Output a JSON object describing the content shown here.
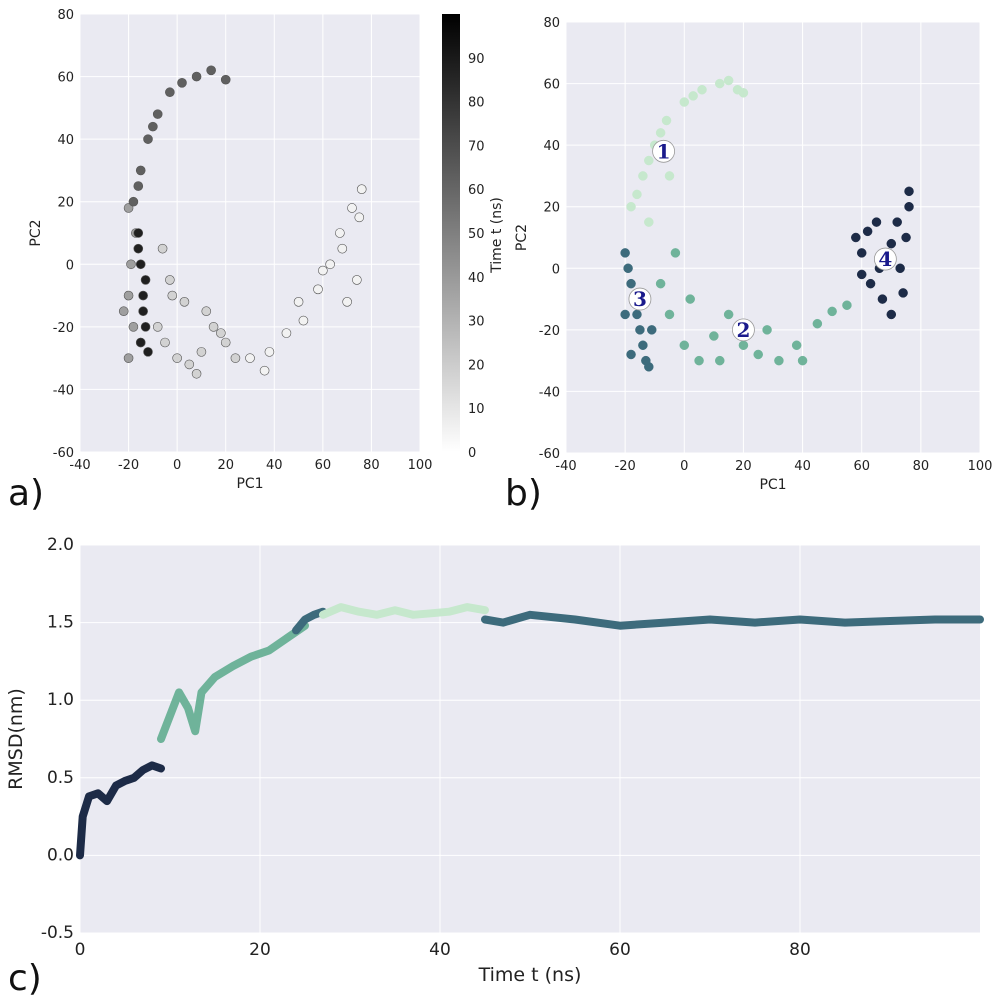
{
  "panels": {
    "a": {
      "tag": "a)"
    },
    "b": {
      "tag": "b)"
    },
    "c": {
      "tag": "c)"
    }
  },
  "chart_data": [
    {
      "id": "a",
      "type": "scatter",
      "xlabel": "PC1",
      "ylabel": "PC2",
      "xlim": [
        -40,
        100
      ],
      "ylim": [
        -60,
        80
      ],
      "xticks": [
        -40,
        -20,
        0,
        20,
        40,
        60,
        80,
        100
      ],
      "yticks": [
        -60,
        -40,
        -20,
        0,
        20,
        40,
        60,
        80
      ],
      "grid": true,
      "color_by": "time",
      "colorbar": {
        "label": "Time t (ns)",
        "range": [
          0,
          100
        ],
        "ticks": [
          0,
          10,
          20,
          30,
          40,
          50,
          60,
          70,
          80,
          90
        ],
        "colormap": "gray_r"
      },
      "series": [
        {
          "time_range": [
            0,
            10
          ],
          "points": [
            [
              38,
              -28
            ],
            [
              45,
              -22
            ],
            [
              50,
              -12
            ],
            [
              58,
              -8
            ],
            [
              63,
              0
            ],
            [
              67,
              10
            ],
            [
              72,
              18
            ],
            [
              76,
              24
            ],
            [
              74,
              -5
            ],
            [
              70,
              -12
            ],
            [
              36,
              -34
            ],
            [
              30,
              -30
            ],
            [
              52,
              -18
            ],
            [
              60,
              -2
            ],
            [
              68,
              5
            ],
            [
              75,
              15
            ]
          ]
        },
        {
          "time_range": [
            10,
            25
          ],
          "points": [
            [
              -5,
              -25
            ],
            [
              0,
              -30
            ],
            [
              5,
              -32
            ],
            [
              10,
              -28
            ],
            [
              15,
              -20
            ],
            [
              20,
              -25
            ],
            [
              24,
              -30
            ],
            [
              -8,
              -20
            ],
            [
              3,
              -12
            ],
            [
              12,
              -15
            ],
            [
              18,
              -22
            ],
            [
              8,
              -35
            ],
            [
              -2,
              -10
            ],
            [
              -6,
              5
            ],
            [
              -3,
              -5
            ]
          ]
        },
        {
          "time_range": [
            25,
            50
          ],
          "points": [
            [
              -20,
              -30
            ],
            [
              -18,
              -20
            ],
            [
              -20,
              -10
            ],
            [
              -19,
              0
            ],
            [
              -17,
              10
            ],
            [
              -20,
              18
            ],
            [
              -15,
              -25
            ],
            [
              -22,
              -15
            ]
          ]
        },
        {
          "time_range": [
            50,
            75
          ],
          "points": [
            [
              -18,
              20
            ],
            [
              -15,
              30
            ],
            [
              -12,
              40
            ],
            [
              -8,
              48
            ],
            [
              -3,
              55
            ],
            [
              2,
              58
            ],
            [
              8,
              60
            ],
            [
              14,
              62
            ],
            [
              20,
              59
            ],
            [
              -16,
              25
            ],
            [
              -10,
              44
            ]
          ]
        },
        {
          "time_range": [
            75,
            100
          ],
          "points": [
            [
              -16,
              10
            ],
            [
              -15,
              0
            ],
            [
              -14,
              -10
            ],
            [
              -13,
              -20
            ],
            [
              -15,
              -25
            ],
            [
              -12,
              -28
            ],
            [
              -16,
              5
            ],
            [
              -13,
              -5
            ],
            [
              -14,
              -15
            ]
          ]
        }
      ]
    },
    {
      "id": "b",
      "type": "scatter",
      "xlabel": "PC1",
      "ylabel": "PC2",
      "xlim": [
        -40,
        100
      ],
      "ylim": [
        -60,
        80
      ],
      "xticks": [
        -40,
        -20,
        0,
        20,
        40,
        60,
        80,
        100
      ],
      "yticks": [
        -60,
        -40,
        -20,
        0,
        20,
        40,
        60,
        80
      ],
      "grid": true,
      "clusters": [
        {
          "label": "1",
          "label_pos": [
            -7,
            38
          ],
          "color": "#c6e8cd",
          "points": [
            [
              -18,
              20
            ],
            [
              -14,
              30
            ],
            [
              -10,
              40
            ],
            [
              -6,
              48
            ],
            [
              0,
              54
            ],
            [
              6,
              58
            ],
            [
              12,
              60
            ],
            [
              18,
              58
            ],
            [
              -12,
              35
            ],
            [
              -16,
              24
            ],
            [
              -8,
              44
            ],
            [
              3,
              56
            ],
            [
              15,
              61
            ],
            [
              20,
              57
            ],
            [
              -5,
              30
            ],
            [
              -12,
              15
            ]
          ]
        },
        {
          "label": "2",
          "label_pos": [
            20,
            -20
          ],
          "color": "#6fb39a",
          "points": [
            [
              -5,
              -15
            ],
            [
              0,
              -25
            ],
            [
              5,
              -30
            ],
            [
              10,
              -22
            ],
            [
              15,
              -15
            ],
            [
              20,
              -25
            ],
            [
              25,
              -28
            ],
            [
              32,
              -30
            ],
            [
              38,
              -25
            ],
            [
              45,
              -18
            ],
            [
              50,
              -14
            ],
            [
              55,
              -12
            ],
            [
              -8,
              -5
            ],
            [
              2,
              -10
            ],
            [
              12,
              -30
            ],
            [
              28,
              -20
            ],
            [
              40,
              -30
            ],
            [
              -3,
              5
            ]
          ]
        },
        {
          "label": "3",
          "label_pos": [
            -15,
            -10
          ],
          "color": "#3d6b7c",
          "points": [
            [
              -20,
              5
            ],
            [
              -18,
              -5
            ],
            [
              -16,
              -15
            ],
            [
              -14,
              -25
            ],
            [
              -12,
              -32
            ],
            [
              -19,
              0
            ],
            [
              -17,
              -10
            ],
            [
              -15,
              -20
            ],
            [
              -13,
              -30
            ],
            [
              -11,
              -20
            ],
            [
              -18,
              -28
            ],
            [
              -20,
              -15
            ]
          ]
        },
        {
          "label": "4",
          "label_pos": [
            68,
            3
          ],
          "color": "#1d2b47",
          "points": [
            [
              58,
              10
            ],
            [
              60,
              5
            ],
            [
              63,
              -5
            ],
            [
              67,
              -10
            ],
            [
              70,
              -15
            ],
            [
              73,
              0
            ],
            [
              75,
              10
            ],
            [
              76,
              20
            ],
            [
              72,
              15
            ],
            [
              65,
              15
            ],
            [
              62,
              12
            ],
            [
              66,
              0
            ],
            [
              74,
              -8
            ],
            [
              70,
              8
            ],
            [
              60,
              -2
            ],
            [
              76,
              25
            ]
          ]
        }
      ]
    },
    {
      "id": "c",
      "type": "line",
      "xlabel": "Time t (ns)",
      "ylabel": "RMSD(nm)",
      "xlim": [
        0,
        100
      ],
      "ylim": [
        -0.5,
        2.0
      ],
      "xticks": [
        0,
        20,
        40,
        60,
        80
      ],
      "yticks": [
        -0.5,
        0.0,
        0.5,
        1.0,
        1.5,
        2.0
      ],
      "grid": true,
      "series": [
        {
          "name": "",
          "color": "#1d2b47",
          "x": [
            0,
            0.3,
            1,
            2,
            3,
            4,
            5,
            6,
            7,
            8,
            9
          ],
          "y": [
            0.0,
            0.25,
            0.38,
            0.4,
            0.35,
            0.45,
            0.48,
            0.5,
            0.55,
            0.58,
            0.56
          ]
        },
        {
          "name": "",
          "color": "#6fb39a",
          "x": [
            9,
            10,
            11,
            12,
            12.8,
            13.5,
            15,
            17,
            19,
            21,
            23,
            25
          ],
          "y": [
            0.75,
            0.9,
            1.05,
            0.95,
            0.8,
            1.05,
            1.15,
            1.22,
            1.28,
            1.32,
            1.4,
            1.48
          ]
        },
        {
          "name": "",
          "color": "#3d6b7c",
          "x": [
            24,
            25,
            26,
            27
          ],
          "y": [
            1.45,
            1.52,
            1.55,
            1.57
          ]
        },
        {
          "name": "",
          "color": "#c6e8cd",
          "x": [
            27,
            29,
            31,
            33,
            35,
            37,
            39,
            41,
            43,
            45
          ],
          "y": [
            1.55,
            1.6,
            1.57,
            1.55,
            1.58,
            1.55,
            1.56,
            1.57,
            1.6,
            1.58
          ]
        },
        {
          "name": "",
          "color": "#3d6b7c",
          "x": [
            45,
            47,
            50,
            55,
            60,
            65,
            70,
            75,
            80,
            85,
            90,
            95,
            100
          ],
          "y": [
            1.52,
            1.5,
            1.55,
            1.52,
            1.48,
            1.5,
            1.52,
            1.5,
            1.52,
            1.5,
            1.51,
            1.52,
            1.52
          ]
        }
      ]
    }
  ]
}
